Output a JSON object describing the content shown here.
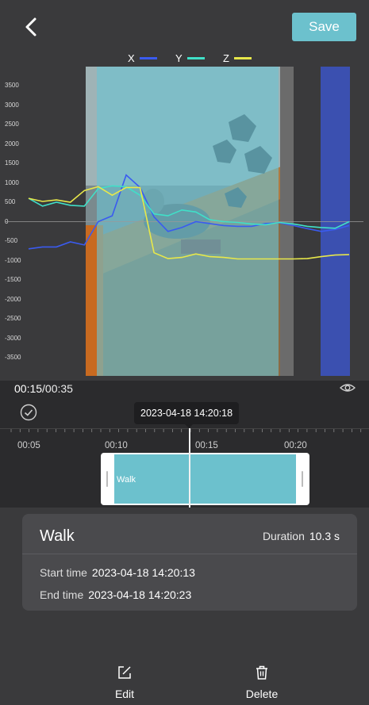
{
  "header": {
    "save_label": "Save"
  },
  "chart_data": {
    "type": "line",
    "legend_placement": "top-center",
    "series": [
      {
        "name": "X",
        "color": "#3a5bf0",
        "values": [
          -700,
          -650,
          -650,
          -520,
          -600,
          0,
          150,
          1200,
          880,
          120,
          -250,
          -150,
          0,
          -50,
          -100,
          -120,
          -120,
          -50,
          -30,
          -100,
          -180,
          -250,
          -200,
          -100
        ]
      },
      {
        "name": "Y",
        "color": "#40e0c8",
        "values": [
          600,
          400,
          500,
          420,
          400,
          850,
          920,
          900,
          680,
          200,
          150,
          300,
          250,
          50,
          0,
          -20,
          -60,
          -80,
          -20,
          -60,
          -120,
          -150,
          -170,
          0
        ]
      },
      {
        "name": "Z",
        "color": "#e8e84a",
        "values": [
          600,
          520,
          560,
          500,
          800,
          900,
          680,
          880,
          880,
          -800,
          -950,
          -920,
          -830,
          -900,
          -920,
          -960,
          -960,
          -960,
          -960,
          -960,
          -950,
          -900,
          -860,
          -850
        ]
      }
    ],
    "ylim": [
      -3500,
      3500
    ],
    "yticks": [
      "3500",
      "3000",
      "2500",
      "2000",
      "1500",
      "1000",
      "500",
      "0",
      "-500",
      "-1000",
      "-1500",
      "-2000",
      "-2500",
      "-3000",
      "-3500"
    ],
    "grid": false
  },
  "player": {
    "current_time": "00:15",
    "total_time": "/00:35",
    "timestamp": "2023-04-18 14:20:18"
  },
  "timeline": {
    "labels": [
      "00:05",
      "00:10",
      "00:15",
      "00:20"
    ],
    "segment_label": "Walk"
  },
  "activity": {
    "title": "Walk",
    "duration_label": "Duration",
    "duration_value": "10.3 s",
    "start_label": "Start time",
    "start_value": "2023-04-18 14:20:13",
    "end_label": "End time",
    "end_value": "2023-04-18 14:20:23"
  },
  "actions": {
    "edit_label": "Edit",
    "delete_label": "Delete"
  },
  "colors": {
    "accent": "#6cc1cd",
    "activity_bar": "#3b50b0",
    "background": "#2b2b2d",
    "panel": "#3a3a3c"
  },
  "icons": {
    "back": "chevron-left-icon",
    "eye": "eye-icon",
    "check": "check-circle-icon",
    "edit": "edit-icon",
    "delete": "trash-icon"
  }
}
